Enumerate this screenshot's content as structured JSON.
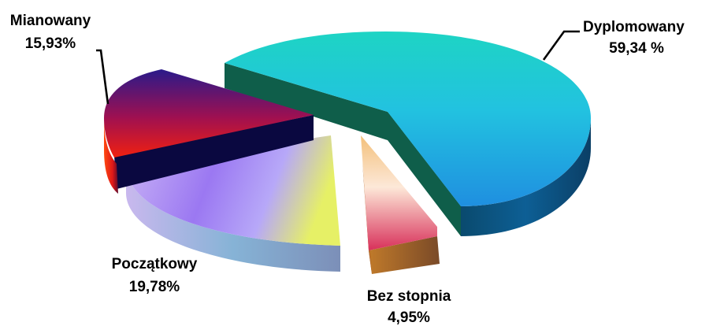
{
  "chart_data": {
    "type": "pie",
    "style": "3d-exploded",
    "slices": [
      {
        "category": "Dyplomowany",
        "value_label": "59,34 %",
        "value": 59.34,
        "color": "#1ab8d6"
      },
      {
        "category": "Bez stopnia",
        "value_label": "4,95%",
        "value": 4.95,
        "color": "#e8863a"
      },
      {
        "category": "Początkowy",
        "value_label": "19,78%",
        "value": 19.78,
        "color": "#b08cf0"
      },
      {
        "category": "Mianowany",
        "value_label": "15,93%",
        "value": 15.93,
        "color": "#8a1060"
      }
    ],
    "legend": "none",
    "labels": "outside-with-leader-lines"
  }
}
